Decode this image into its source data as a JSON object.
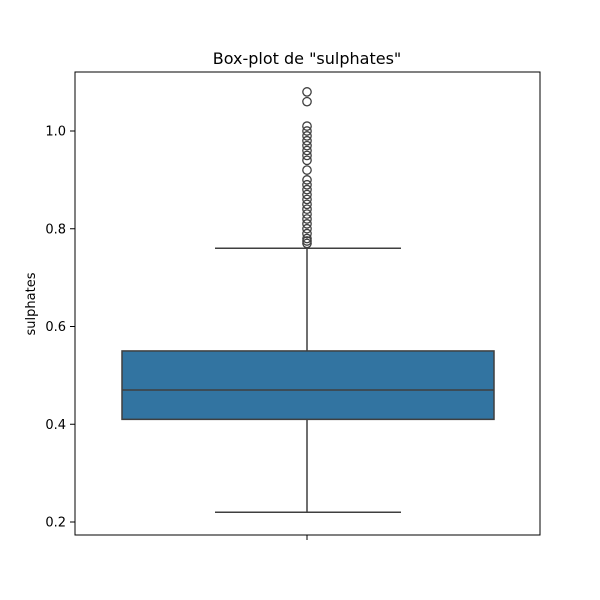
{
  "chart_data": {
    "type": "box",
    "title": "Box-plot de \"sulphates\"",
    "xlabel": "",
    "ylabel": "sulphates",
    "ylim": [
      0.18,
      1.12
    ],
    "yticks": [
      0.2,
      0.4,
      0.6,
      0.8,
      1.0
    ],
    "ytick_labels": [
      "0.2",
      "0.4",
      "0.6",
      "0.8",
      "1.0"
    ],
    "box": {
      "whisker_low": 0.22,
      "q1": 0.41,
      "median": 0.47,
      "q3": 0.55,
      "whisker_high": 0.76
    },
    "outliers": [
      0.77,
      0.775,
      0.78,
      0.79,
      0.8,
      0.81,
      0.82,
      0.83,
      0.84,
      0.85,
      0.86,
      0.87,
      0.88,
      0.89,
      0.9,
      0.92,
      0.94,
      0.95,
      0.96,
      0.97,
      0.98,
      0.99,
      1.0,
      1.01,
      1.06,
      1.08
    ],
    "colors": {
      "box_fill": "#3274a1",
      "line": "#3f3f3f",
      "axes": "#000000"
    },
    "grid": false
  }
}
